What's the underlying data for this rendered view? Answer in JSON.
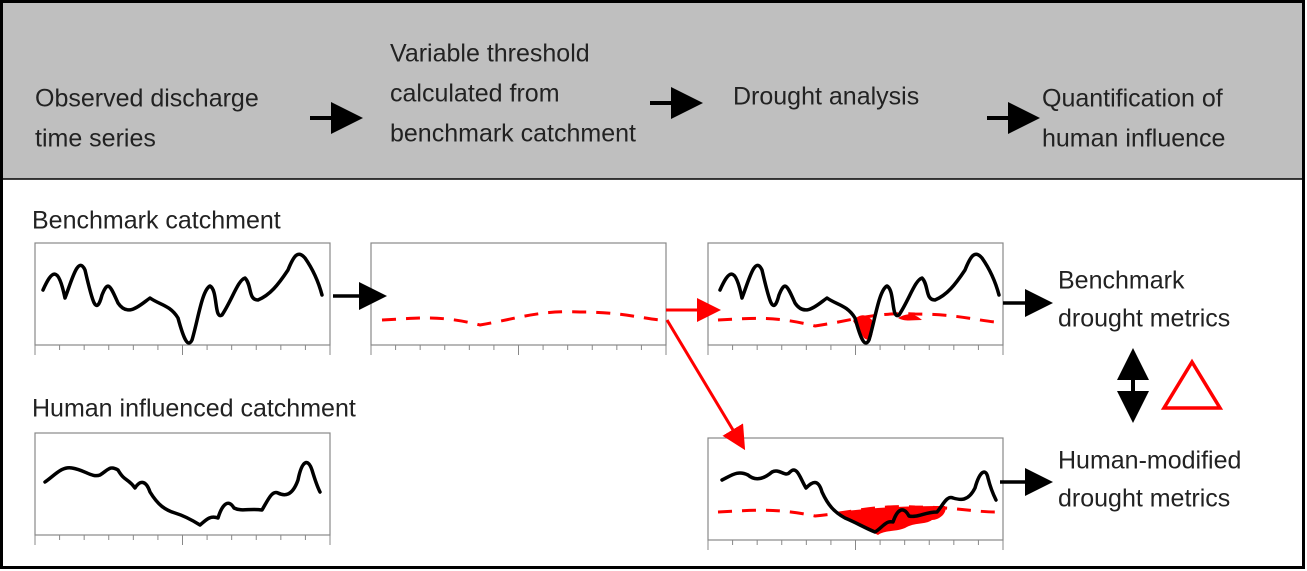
{
  "header": {
    "steps": [
      {
        "lines": [
          "Observed discharge",
          "time series"
        ]
      },
      {
        "lines": [
          "Variable threshold",
          "calculated from",
          "benchmark catchment"
        ]
      },
      {
        "lines": [
          "Drought analysis"
        ]
      },
      {
        "lines": [
          "Quantification of",
          "human influence"
        ]
      }
    ]
  },
  "rows": {
    "benchmark": {
      "label": "Benchmark catchment",
      "output": [
        "Benchmark",
        "drought metrics"
      ]
    },
    "human": {
      "label": "Human influenced catchment",
      "output": [
        "Human-modified",
        "drought metrics"
      ]
    }
  }
}
